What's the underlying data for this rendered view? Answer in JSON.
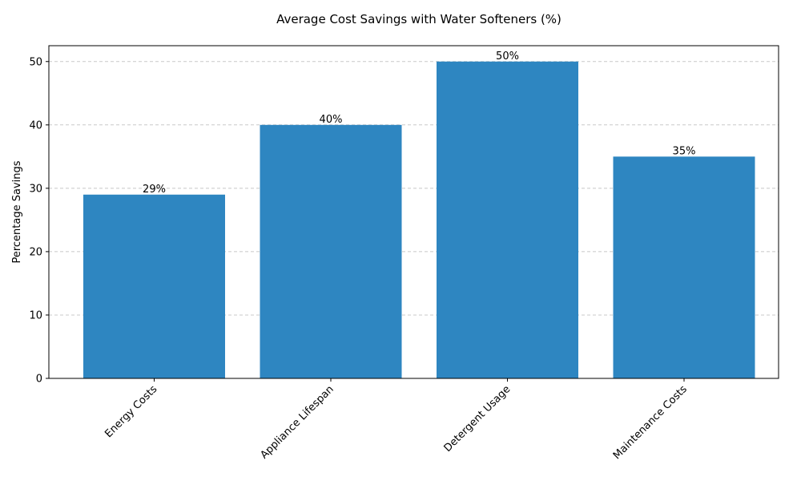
{
  "chart_data": {
    "type": "bar",
    "title": "Average Cost Savings with Water Softeners (%)",
    "xlabel": "",
    "ylabel": "Percentage Savings",
    "categories": [
      "Energy Costs",
      "Appliance Lifespan",
      "Detergent Usage",
      "Maintenance Costs"
    ],
    "values": [
      29,
      40,
      50,
      35
    ],
    "data_labels": [
      "29%",
      "40%",
      "50%",
      "35%"
    ],
    "ylim": [
      0,
      52.5
    ],
    "yticks": [
      0,
      10,
      20,
      30,
      40,
      50
    ],
    "grid": "y-dashed",
    "bar_color": "#2E86C1",
    "legend": "none"
  }
}
